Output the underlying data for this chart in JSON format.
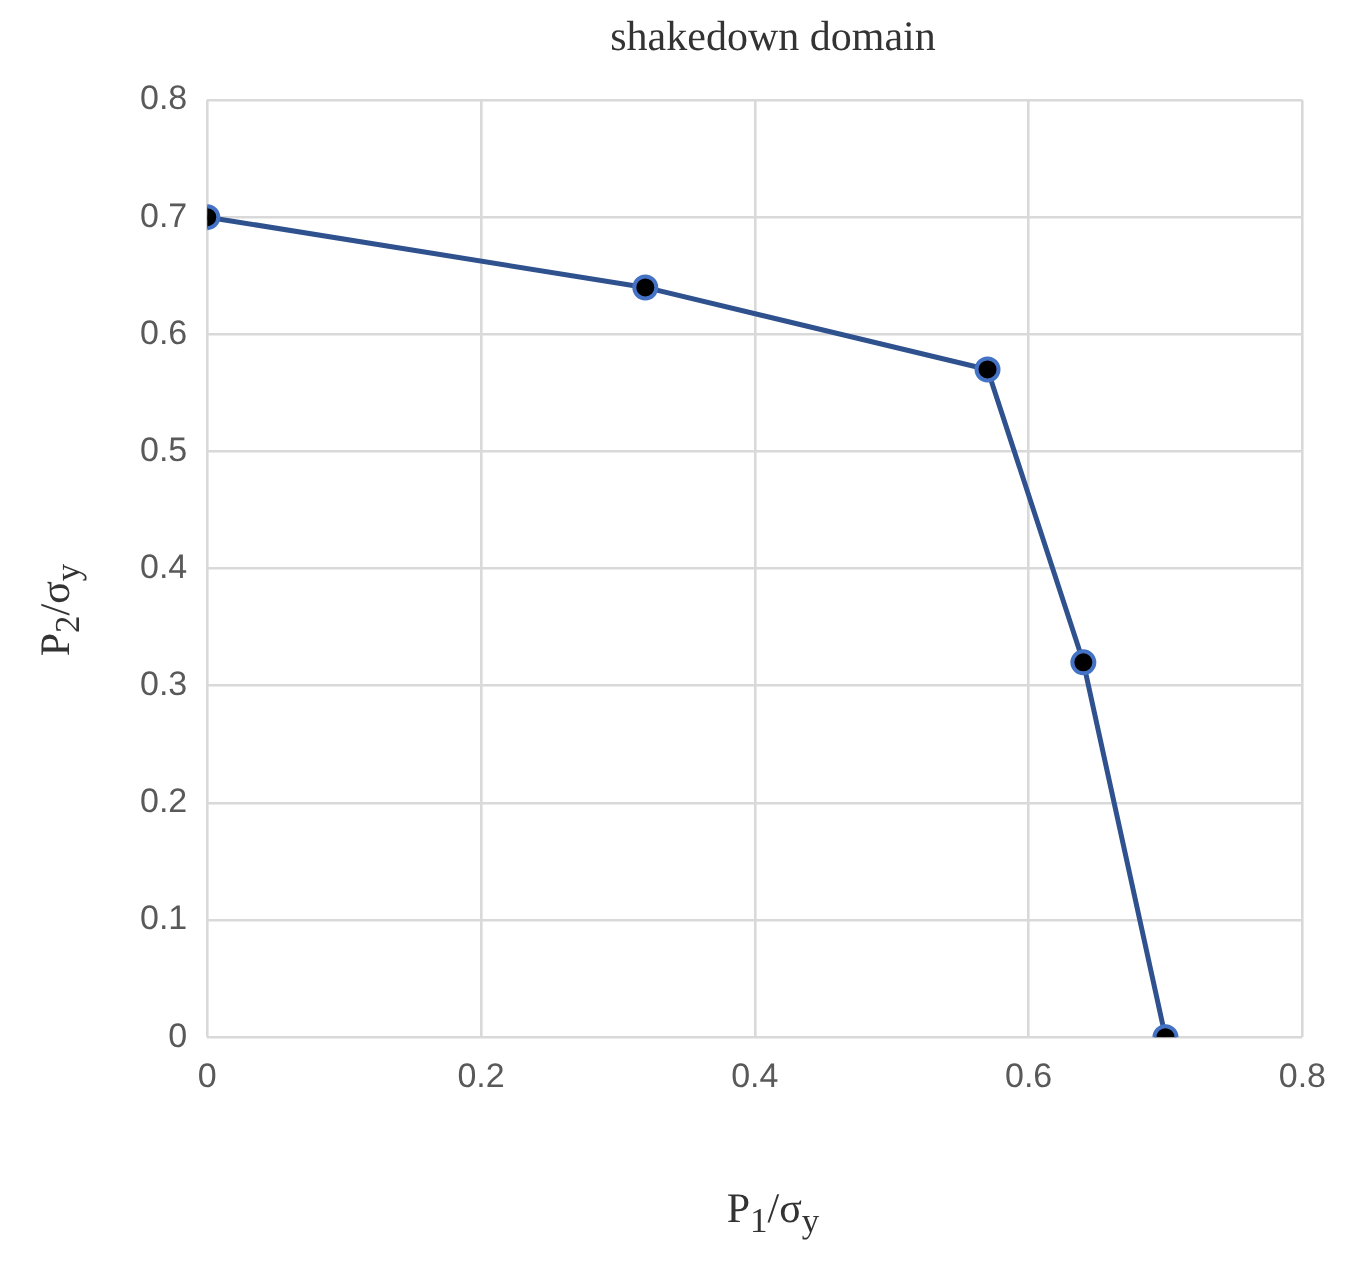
{
  "chart_data": {
    "type": "line",
    "title": "shakedown domain",
    "xlabel": "P$_{1}$/σ$_{y}$",
    "ylabel": "P$_{2}$/σ$_{y}$",
    "x": [
      0,
      0.32,
      0.57,
      0.64,
      0.7
    ],
    "series": [
      {
        "color": "#2f528f",
        "values": [
          0.7,
          0.64,
          0.57,
          0.32,
          0
        ]
      }
    ],
    "xlim": [
      0,
      0.8
    ],
    "xticks": [
      0,
      0.2,
      0.4,
      0.6,
      0.8
    ],
    "ylim": [
      0,
      0.8
    ],
    "yticks": [
      0,
      0.1,
      0.2,
      0.3,
      0.4,
      0.5,
      0.6,
      0.7,
      0.8
    ],
    "grid": true,
    "legend": false,
    "marker": "circle",
    "line_style": "solid"
  }
}
